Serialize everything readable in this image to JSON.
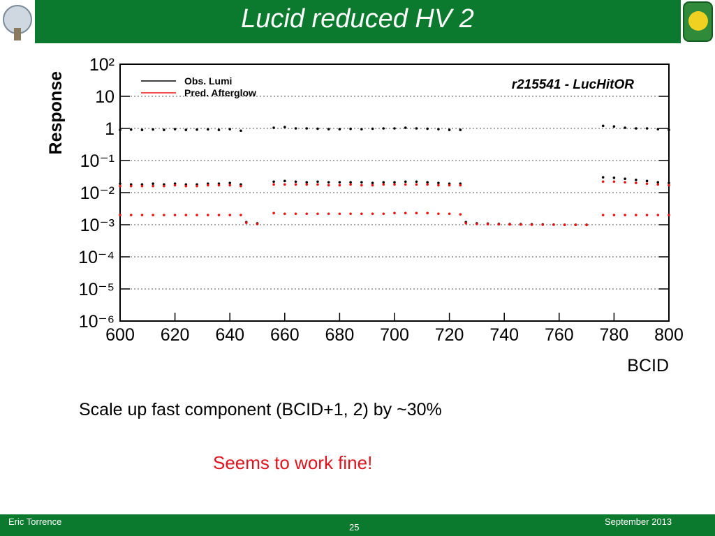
{
  "title": "Lucid reduced HV 2",
  "bullet": "Scale up fast component (BCID+1, 2) by ~30%",
  "note": "Seems to work fine!",
  "footer": {
    "author": "Eric Torrence",
    "page": "25",
    "date": "September 2013"
  },
  "chart_data": {
    "type": "scatter",
    "annotation": "r215541 - LucHitOR",
    "x_label": "BCID",
    "y_label": "Response",
    "xlim": [
      600,
      800
    ],
    "xticks": [
      600,
      620,
      640,
      660,
      680,
      700,
      720,
      740,
      760,
      780,
      800
    ],
    "ylim": [
      1e-06,
      100
    ],
    "log_y": true,
    "grid": true,
    "legend": "upper left",
    "yticks": [
      {
        "value": 1e-06,
        "label": "10⁻⁶"
      },
      {
        "value": 1e-05,
        "label": "10⁻⁵"
      },
      {
        "value": 0.0001,
        "label": "10⁻⁴"
      },
      {
        "value": 0.001,
        "label": "10⁻³"
      },
      {
        "value": 0.01,
        "label": "10⁻²"
      },
      {
        "value": 0.1,
        "label": "10⁻¹"
      },
      1,
      10,
      {
        "value": 100,
        "label": "10²"
      }
    ],
    "series": [
      {
        "name": "Obs. Lumi",
        "color": "#000000",
        "x": [
          600,
          604,
          608,
          612,
          616,
          620,
          624,
          628,
          632,
          636,
          640,
          644,
          656,
          660,
          664,
          668,
          672,
          676,
          680,
          684,
          688,
          692,
          696,
          700,
          704,
          708,
          712,
          716,
          720,
          724,
          776,
          780,
          784,
          788,
          792,
          796,
          800,
          600,
          604,
          608,
          612,
          616,
          620,
          624,
          628,
          632,
          636,
          640,
          644,
          656,
          660,
          664,
          668,
          672,
          676,
          680,
          684,
          688,
          692,
          696,
          700,
          704,
          708,
          712,
          716,
          720,
          724,
          776,
          780,
          784,
          788,
          792,
          796,
          800,
          646,
          650,
          726,
          730,
          734,
          738,
          742,
          746,
          750,
          754,
          758,
          762,
          766,
          770
        ],
        "values": [
          0.9,
          0.92,
          0.9,
          0.93,
          0.9,
          0.95,
          0.9,
          0.92,
          0.94,
          0.9,
          0.95,
          0.85,
          1.05,
          1.1,
          1.0,
          1.0,
          0.98,
          0.95,
          0.95,
          0.97,
          0.95,
          0.98,
          1.0,
          1.0,
          1.05,
          1.0,
          0.98,
          0.95,
          0.9,
          0.9,
          1.2,
          1.15,
          1.05,
          1.0,
          1.0,
          0.95,
          0.9,
          0.019,
          0.018,
          0.018,
          0.019,
          0.018,
          0.019,
          0.018,
          0.018,
          0.019,
          0.019,
          0.02,
          0.018,
          0.022,
          0.023,
          0.022,
          0.021,
          0.022,
          0.021,
          0.021,
          0.021,
          0.021,
          0.02,
          0.021,
          0.021,
          0.022,
          0.022,
          0.021,
          0.02,
          0.019,
          0.019,
          0.03,
          0.029,
          0.027,
          0.025,
          0.023,
          0.021,
          0.02,
          0.0012,
          0.0011,
          0.0012,
          0.0011,
          0.00108,
          0.00106,
          0.00105,
          0.00104,
          0.00103,
          0.00102,
          0.00101,
          0.001,
          0.001,
          0.001
        ]
      },
      {
        "name": "Pred. Afterglow",
        "color": "#ee1111",
        "x": [
          600,
          604,
          608,
          612,
          616,
          620,
          624,
          628,
          632,
          636,
          640,
          644,
          656,
          660,
          664,
          668,
          672,
          676,
          680,
          684,
          688,
          692,
          696,
          700,
          704,
          708,
          712,
          716,
          720,
          724,
          776,
          780,
          784,
          788,
          792,
          796,
          800,
          600,
          604,
          608,
          612,
          616,
          620,
          624,
          628,
          632,
          636,
          640,
          644,
          656,
          660,
          664,
          668,
          672,
          676,
          680,
          684,
          688,
          692,
          696,
          700,
          704,
          708,
          712,
          716,
          720,
          724,
          776,
          780,
          784,
          788,
          792,
          796,
          800,
          646,
          650,
          726,
          730,
          734,
          738,
          742,
          746,
          750,
          754,
          758,
          762,
          766,
          770
        ],
        "values": [
          0.016,
          0.016,
          0.016,
          0.016,
          0.016,
          0.017,
          0.016,
          0.016,
          0.017,
          0.017,
          0.017,
          0.016,
          0.018,
          0.018,
          0.018,
          0.018,
          0.018,
          0.017,
          0.017,
          0.018,
          0.017,
          0.017,
          0.018,
          0.018,
          0.018,
          0.018,
          0.018,
          0.017,
          0.017,
          0.017,
          0.022,
          0.022,
          0.021,
          0.02,
          0.019,
          0.018,
          0.017,
          0.002,
          0.002,
          0.002,
          0.002,
          0.002,
          0.002,
          0.002,
          0.002,
          0.002,
          0.002,
          0.002,
          0.002,
          0.0023,
          0.0022,
          0.0022,
          0.0022,
          0.0022,
          0.0022,
          0.0022,
          0.0022,
          0.0022,
          0.0022,
          0.0022,
          0.0023,
          0.0023,
          0.0023,
          0.0023,
          0.0022,
          0.0022,
          0.0021,
          0.002,
          0.002,
          0.002,
          0.002,
          0.002,
          0.002,
          0.002,
          0.00115,
          0.00105,
          0.00112,
          0.00105,
          0.00104,
          0.00103,
          0.00102,
          0.00101,
          0.001,
          0.001,
          0.001,
          0.00099,
          0.00099,
          0.00098
        ]
      }
    ]
  }
}
